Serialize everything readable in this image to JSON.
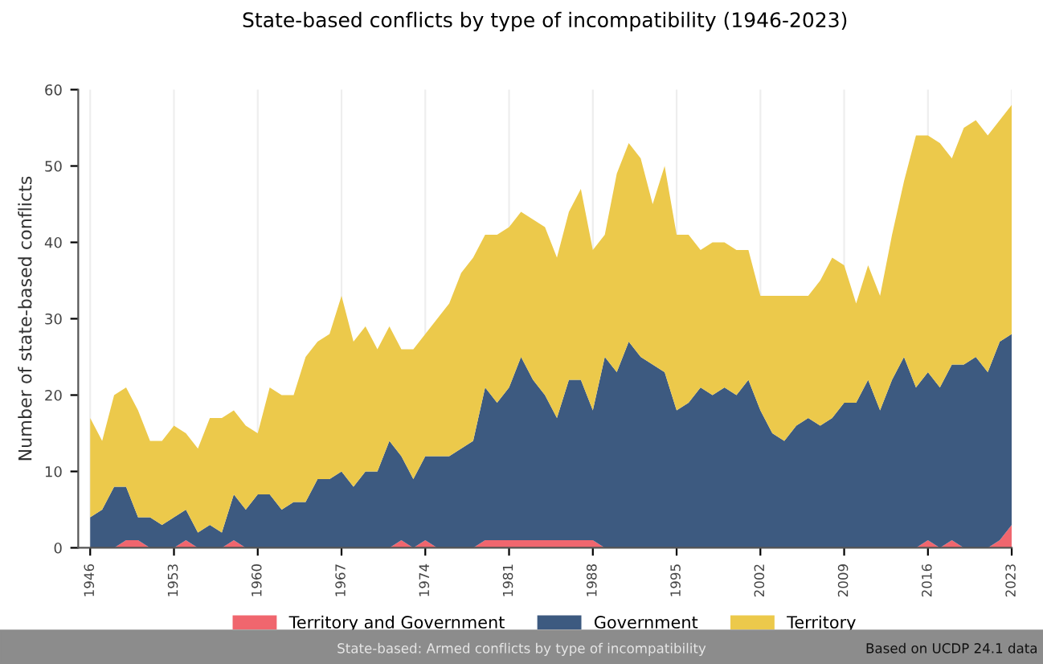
{
  "chart_data": {
    "type": "area",
    "stacked": true,
    "title": "State-based conflicts by type of incompatibility (1946-2023)",
    "ylabel": "Number of state-based conflicts",
    "x": [
      1946,
      1947,
      1948,
      1949,
      1950,
      1951,
      1952,
      1953,
      1954,
      1955,
      1956,
      1957,
      1958,
      1959,
      1960,
      1961,
      1962,
      1963,
      1964,
      1965,
      1966,
      1967,
      1968,
      1969,
      1970,
      1971,
      1972,
      1973,
      1974,
      1975,
      1976,
      1977,
      1978,
      1979,
      1980,
      1981,
      1982,
      1983,
      1984,
      1985,
      1986,
      1987,
      1988,
      1989,
      1990,
      1991,
      1992,
      1993,
      1994,
      1995,
      1996,
      1997,
      1998,
      1999,
      2000,
      2001,
      2002,
      2003,
      2004,
      2005,
      2006,
      2007,
      2008,
      2009,
      2010,
      2011,
      2012,
      2013,
      2014,
      2015,
      2016,
      2017,
      2018,
      2019,
      2020,
      2021,
      2022,
      2023
    ],
    "series": [
      {
        "name": "Territory and Government",
        "color": "#f0666e",
        "values": [
          0,
          0,
          0,
          1,
          1,
          0,
          0,
          0,
          1,
          0,
          0,
          0,
          1,
          0,
          0,
          0,
          0,
          0,
          0,
          0,
          0,
          0,
          0,
          0,
          0,
          0,
          1,
          0,
          1,
          0,
          0,
          0,
          0,
          1,
          1,
          1,
          1,
          1,
          1,
          1,
          1,
          1,
          1,
          0,
          0,
          0,
          0,
          0,
          0,
          0,
          0,
          0,
          0,
          0,
          0,
          0,
          0,
          0,
          0,
          0,
          0,
          0,
          0,
          0,
          0,
          0,
          0,
          0,
          0,
          0,
          1,
          0,
          1,
          0,
          0,
          0,
          1,
          3
        ]
      },
      {
        "name": "Government",
        "color": "#3d5a80",
        "values": [
          4,
          5,
          8,
          7,
          3,
          4,
          3,
          4,
          4,
          2,
          3,
          2,
          6,
          5,
          7,
          7,
          5,
          6,
          6,
          9,
          9,
          10,
          8,
          10,
          10,
          14,
          11,
          9,
          11,
          12,
          12,
          13,
          14,
          20,
          18,
          20,
          24,
          21,
          19,
          16,
          21,
          21,
          17,
          25,
          23,
          27,
          25,
          24,
          23,
          18,
          19,
          21,
          20,
          21,
          20,
          22,
          18,
          15,
          14,
          16,
          17,
          16,
          17,
          19,
          19,
          22,
          18,
          22,
          25,
          21,
          22,
          21,
          23,
          24,
          25,
          23,
          26,
          25
        ]
      },
      {
        "name": "Territory",
        "color": "#ecc94b",
        "values": [
          13,
          9,
          12,
          13,
          14,
          10,
          11,
          12,
          10,
          11,
          14,
          15,
          11,
          11,
          8,
          14,
          15,
          14,
          19,
          18,
          19,
          23,
          19,
          19,
          16,
          15,
          14,
          17,
          16,
          18,
          20,
          23,
          24,
          20,
          22,
          21,
          19,
          21,
          22,
          21,
          22,
          25,
          21,
          16,
          26,
          26,
          26,
          21,
          27,
          23,
          22,
          18,
          20,
          19,
          19,
          17,
          15,
          18,
          19,
          17,
          16,
          19,
          21,
          18,
          13,
          15,
          15,
          19,
          23,
          33,
          31,
          32,
          27,
          31,
          31,
          31,
          29,
          30
        ]
      }
    ],
    "xlim": [
      1945,
      2023
    ],
    "xticks": [
      1946,
      1953,
      1960,
      1967,
      1974,
      1981,
      1988,
      1995,
      2002,
      2009,
      2016,
      2023
    ],
    "ylim": [
      0,
      60
    ],
    "yticks": [
      0,
      10,
      20,
      30,
      40,
      50,
      60
    ],
    "grid": "x",
    "legend": "bottom",
    "annotations": [
      "State-based: Armed conflicts by type of incompatibility",
      "Based on UCDP 24.1 data"
    ]
  }
}
